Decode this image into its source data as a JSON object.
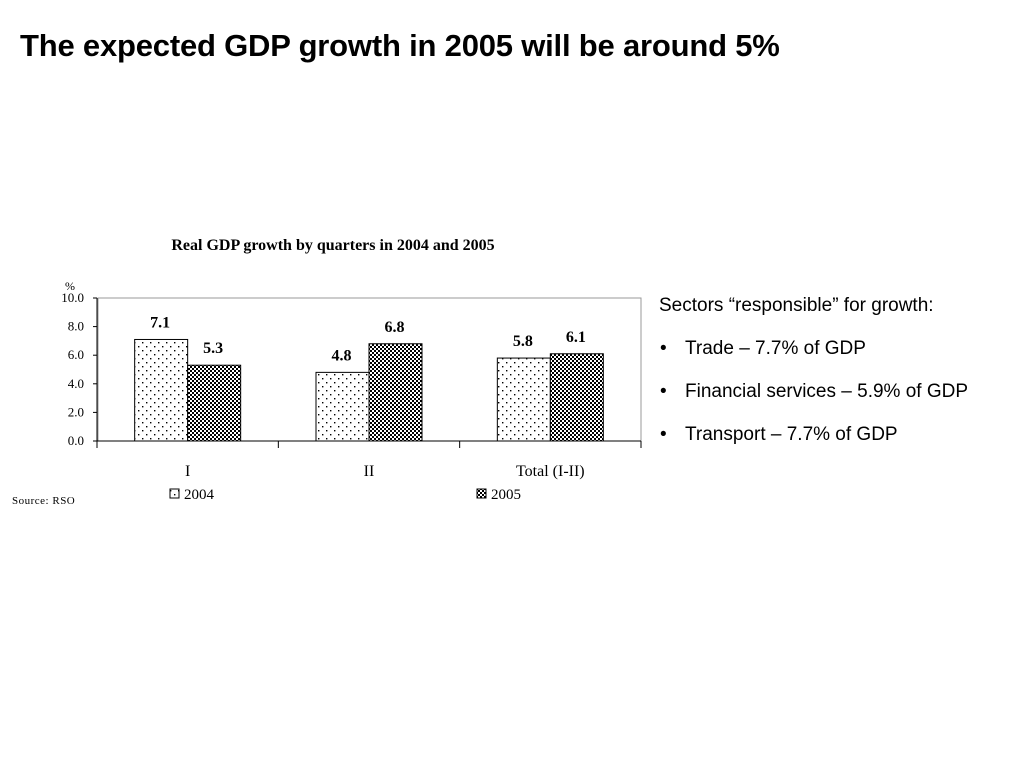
{
  "slide": {
    "title": "The expected GDP growth in 2005 will be around 5%"
  },
  "sectors": {
    "intro": "Sectors “responsible” for growth:",
    "bullet": "•",
    "items": [
      "Trade – 7.7% of GDP",
      "Financial services – 5.9% of GDP",
      "Transport – 7.7% of GDP"
    ]
  },
  "chart_data": {
    "type": "bar",
    "title": "Real GDP growth by quarters in 2004 and 2005",
    "ylabel": "%",
    "xlabel": "",
    "categories": [
      "I",
      "II",
      "Total (I-II)"
    ],
    "ylim": [
      0,
      10
    ],
    "yticks": [
      "0.0",
      "2.0",
      "4.0",
      "6.0",
      "8.0",
      "10.0"
    ],
    "series": [
      {
        "name": "2004",
        "values": [
          7.1,
          4.8,
          5.8
        ],
        "pattern": "dots"
      },
      {
        "name": "2005",
        "values": [
          5.3,
          6.8,
          6.1
        ],
        "pattern": "checker"
      }
    ],
    "data_labels": [
      [
        "7.1",
        "4.8",
        "5.8"
      ],
      [
        "5.3",
        "6.8",
        "6.1"
      ]
    ],
    "grid": false,
    "legend_position": "bottom",
    "source": "Source: RSO"
  }
}
